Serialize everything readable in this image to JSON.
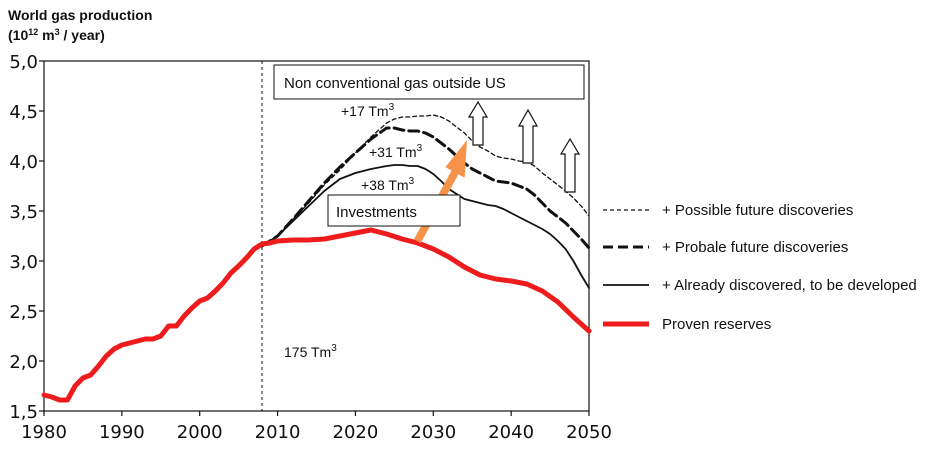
{
  "chart_data": {
    "type": "line",
    "ytitle_line1": "World gas production",
    "ytitle_line2_pre": "(10",
    "ytitle_line2_sup1": "12",
    "ytitle_line2_mid": " m",
    "ytitle_line2_sup2": "3",
    "ytitle_line2_post": " / year)",
    "xlim": [
      1980,
      2050
    ],
    "ylim": [
      1.5,
      5.0
    ],
    "xticks": [
      1980,
      1990,
      2000,
      2010,
      2020,
      2030,
      2040,
      2050
    ],
    "yticks": [
      1.5,
      2.0,
      2.5,
      3.0,
      3.5,
      4.0,
      4.5,
      5.0
    ],
    "ytick_labels": [
      "1,5",
      "2,0",
      "2,5",
      "3,0",
      "3,5",
      "4,0",
      "4,5",
      "5,0"
    ],
    "vline_year": 2008,
    "series": [
      {
        "name": "+ Possible future discoveries",
        "style": "dotted",
        "color": "#111111",
        "x": [
          2008,
          2010,
          2012,
          2014,
          2016,
          2018,
          2020,
          2022,
          2024,
          2025,
          2026,
          2027,
          2028,
          2029,
          2030,
          2031,
          2032,
          2033,
          2034,
          2035,
          2036,
          2037,
          2038,
          2039,
          2040,
          2041,
          2042,
          2043,
          2044,
          2045,
          2046,
          2047,
          2048,
          2049,
          2050
        ],
        "y": [
          3.15,
          3.25,
          3.42,
          3.58,
          3.76,
          3.91,
          4.08,
          4.24,
          4.38,
          4.42,
          4.44,
          4.44,
          4.45,
          4.45,
          4.46,
          4.44,
          4.4,
          4.34,
          4.28,
          4.2,
          4.14,
          4.1,
          4.05,
          4.03,
          4.02,
          4.0,
          3.99,
          3.95,
          3.88,
          3.82,
          3.76,
          3.7,
          3.63,
          3.55,
          3.45
        ]
      },
      {
        "name": "+ Probale future discoveries",
        "style": "dashed",
        "color": "#111111",
        "x": [
          2008,
          2010,
          2012,
          2014,
          2016,
          2018,
          2020,
          2022,
          2024,
          2025,
          2026,
          2027,
          2028,
          2029,
          2030,
          2031,
          2032,
          2033,
          2034,
          2035,
          2036,
          2037,
          2038,
          2039,
          2040,
          2041,
          2042,
          2043,
          2044,
          2045,
          2046,
          2047,
          2048,
          2049,
          2050
        ],
        "y": [
          3.15,
          3.25,
          3.42,
          3.6,
          3.78,
          3.94,
          4.08,
          4.22,
          4.33,
          4.33,
          4.31,
          4.3,
          4.3,
          4.28,
          4.24,
          4.18,
          4.12,
          4.05,
          3.98,
          3.92,
          3.88,
          3.84,
          3.8,
          3.79,
          3.78,
          3.75,
          3.72,
          3.66,
          3.58,
          3.5,
          3.44,
          3.38,
          3.3,
          3.22,
          3.13
        ]
      },
      {
        "name": "+ Already discovered, to be developed",
        "style": "solid",
        "color": "#111111",
        "x": [
          2008,
          2010,
          2012,
          2014,
          2016,
          2018,
          2020,
          2022,
          2024,
          2025,
          2026,
          2027,
          2028,
          2029,
          2030,
          2031,
          2032,
          2033,
          2034,
          2035,
          2036,
          2037,
          2038,
          2039,
          2040,
          2041,
          2042,
          2043,
          2044,
          2045,
          2046,
          2047,
          2048,
          2049,
          2050
        ],
        "y": [
          3.15,
          3.25,
          3.4,
          3.55,
          3.7,
          3.82,
          3.88,
          3.92,
          3.95,
          3.96,
          3.96,
          3.95,
          3.95,
          3.92,
          3.87,
          3.8,
          3.72,
          3.67,
          3.62,
          3.6,
          3.58,
          3.56,
          3.55,
          3.52,
          3.48,
          3.44,
          3.4,
          3.36,
          3.32,
          3.27,
          3.2,
          3.12,
          3.0,
          2.86,
          2.73
        ]
      },
      {
        "name": "Proven reserves",
        "style": "thick",
        "color": "#ee1c1c",
        "x": [
          1980,
          1981,
          1982,
          1983,
          1984,
          1985,
          1986,
          1987,
          1988,
          1989,
          1990,
          1991,
          1992,
          1993,
          1994,
          1995,
          1996,
          1997,
          1998,
          1999,
          2000,
          2001,
          2002,
          2003,
          2004,
          2005,
          2006,
          2007,
          2008,
          2009,
          2010,
          2012,
          2014,
          2016,
          2018,
          2020,
          2022,
          2024,
          2026,
          2028,
          2030,
          2032,
          2034,
          2036,
          2038,
          2040,
          2042,
          2044,
          2046,
          2048,
          2050
        ],
        "y": [
          1.66,
          1.64,
          1.61,
          1.61,
          1.75,
          1.83,
          1.86,
          1.95,
          2.05,
          2.12,
          2.16,
          2.18,
          2.2,
          2.22,
          2.22,
          2.25,
          2.35,
          2.35,
          2.45,
          2.53,
          2.6,
          2.63,
          2.7,
          2.78,
          2.88,
          2.95,
          3.03,
          3.12,
          3.17,
          3.18,
          3.2,
          3.21,
          3.21,
          3.22,
          3.25,
          3.28,
          3.31,
          3.27,
          3.22,
          3.18,
          3.12,
          3.04,
          2.94,
          2.86,
          2.82,
          2.8,
          2.77,
          2.7,
          2.59,
          2.44,
          2.3
        ]
      }
    ],
    "legend": [
      {
        "label": "+ Possible future discoveries",
        "style": "dotted"
      },
      {
        "label": "+ Probale future discoveries",
        "style": "dashed"
      },
      {
        "label": "+ Already discovered, to be developed",
        "style": "solid"
      },
      {
        "label": "Proven reserves",
        "style": "thick"
      }
    ],
    "box_top_label": "Non conventional gas outside US",
    "box_invest_label": "Investments",
    "ann_17": "+17 Tm",
    "ann_31": "+31 Tm",
    "ann_38": "+38 Tm",
    "ann_175": "175 Tm",
    "ann_sup": "3",
    "colors": {
      "proven": "#ee1c1c",
      "arrow": "#f7924a",
      "line": "#111111"
    }
  }
}
